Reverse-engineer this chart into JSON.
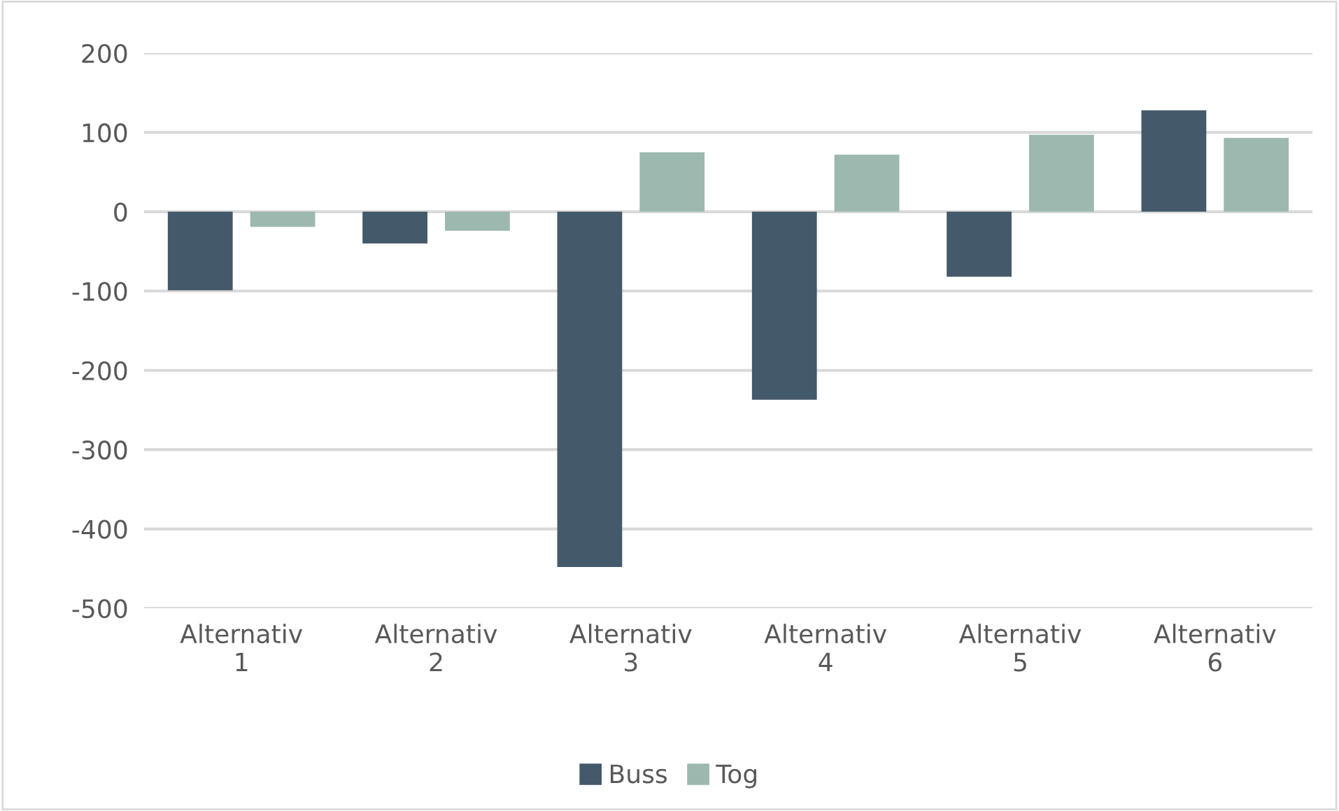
{
  "chart_data": {
    "type": "bar",
    "categories": [
      "Alternativ 1",
      "Alternativ 2",
      "Alternativ 3",
      "Alternativ 4",
      "Alternativ 5",
      "Alternativ 6"
    ],
    "series": [
      {
        "name": "Buss",
        "color": "#44596a",
        "values": [
          -99,
          -40,
          -448,
          -237,
          -82,
          128
        ]
      },
      {
        "name": "Tog",
        "color": "#9db8ae",
        "values": [
          -19,
          -24,
          75,
          72,
          97,
          93
        ]
      }
    ],
    "ylim": [
      -500,
      200
    ],
    "yticks": [
      -500,
      -400,
      -300,
      -200,
      -100,
      0,
      100,
      200
    ],
    "grid": "y",
    "legend": "bottom"
  }
}
